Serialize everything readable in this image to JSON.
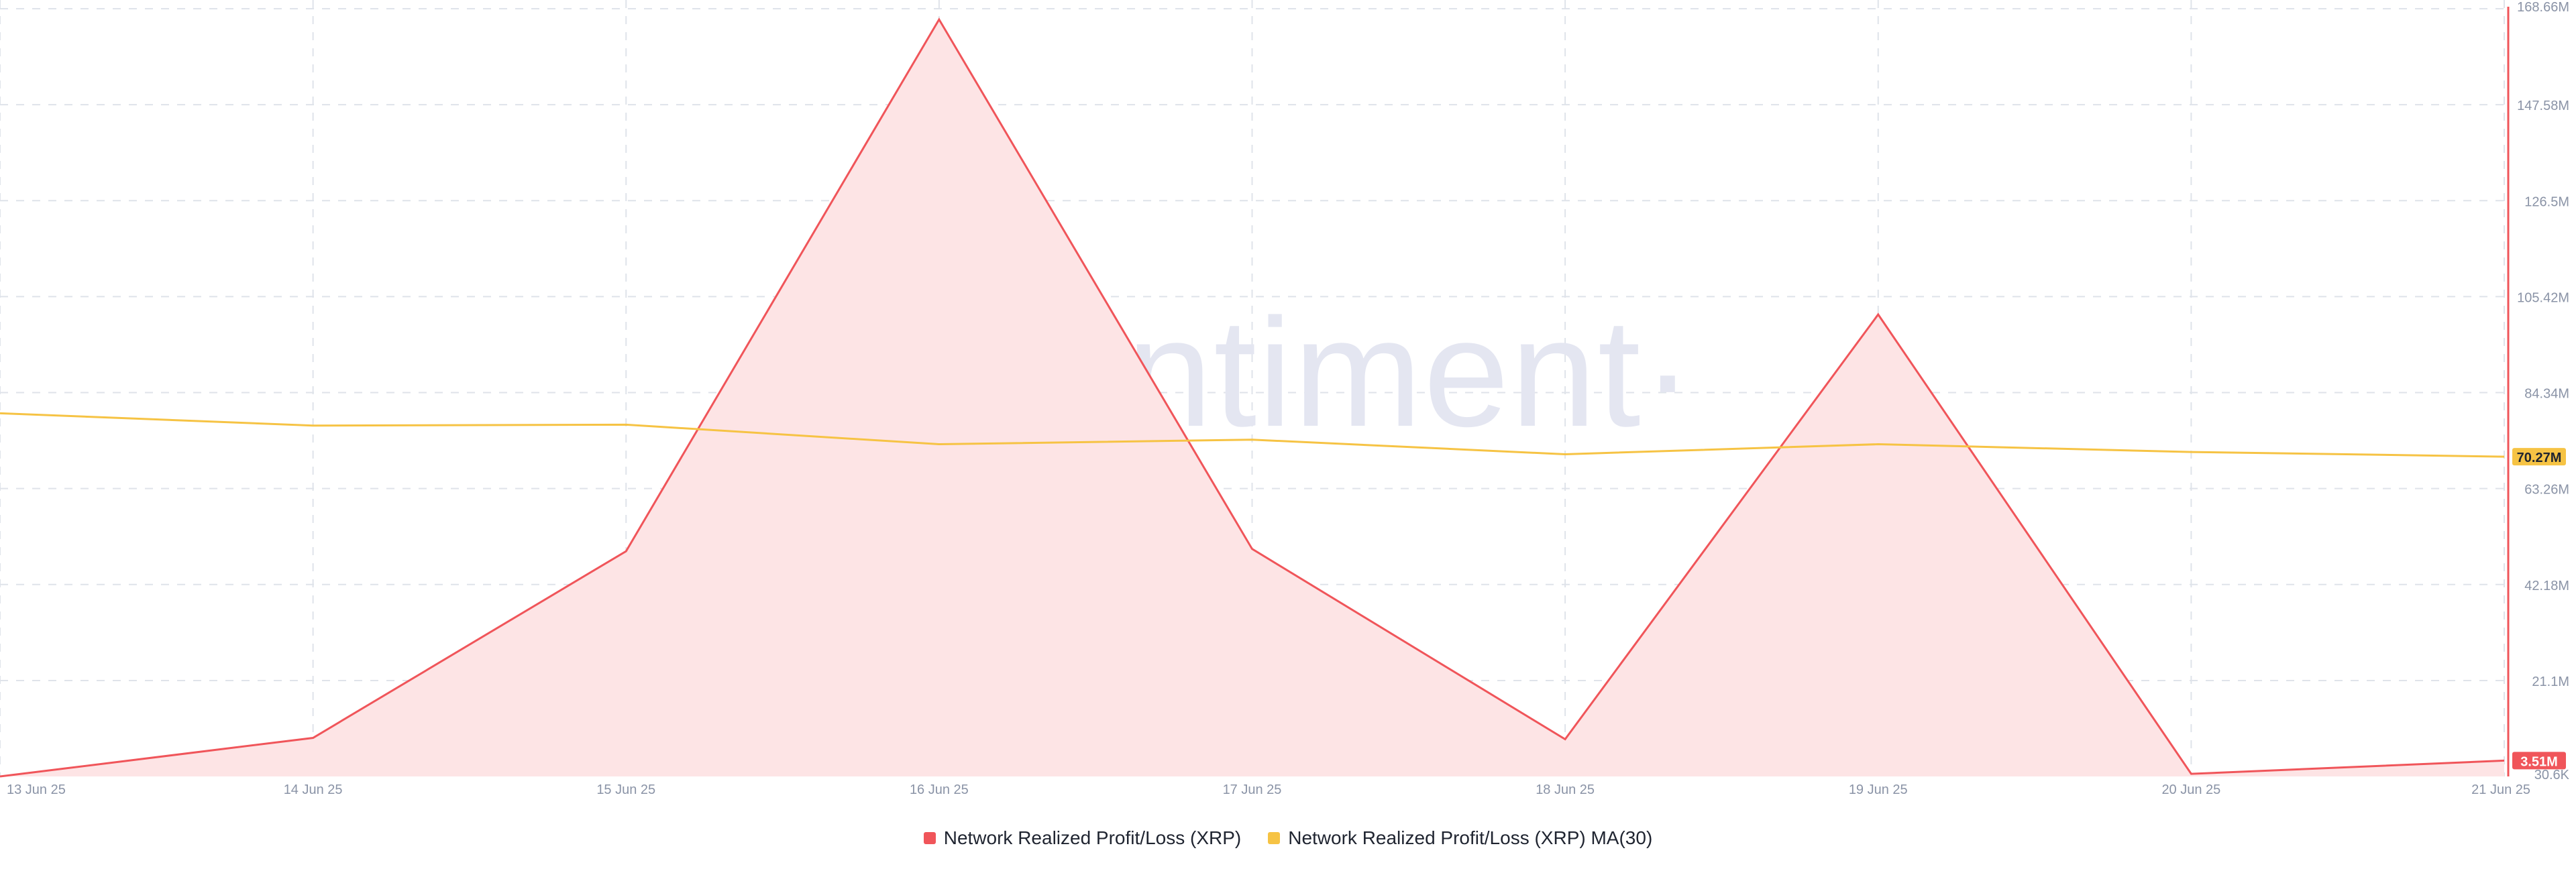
{
  "watermark": "·santiment·",
  "legend": {
    "series_1": {
      "label": "Network Realized Profit/Loss (XRP)",
      "color": "#f0555a"
    },
    "series_2": {
      "label": "Network Realized Profit/Loss (XRP) MA(30)",
      "color": "#f6c344"
    }
  },
  "colors": {
    "grid": "#dfe3ea",
    "tick_text": "#8a93a6",
    "pl_line": "#f0555a",
    "pl_fill": "#fde4e5",
    "ma_line": "#f6c344",
    "axis_line": "#f0555a",
    "watermark": "#e4e6f1"
  },
  "chart_data": {
    "type": "area",
    "title": "",
    "xlabel": "",
    "ylabel": "",
    "categories": [
      "13 Jun 25",
      "14 Jun 25",
      "15 Jun 25",
      "16 Jun 25",
      "17 Jun 25",
      "18 Jun 25",
      "19 Jun 25",
      "20 Jun 25",
      "21 Jun 25"
    ],
    "x_tick_labels": [
      "13 Jun 25",
      "14 Jun 25",
      "15 Jun 25",
      "16 Jun 25",
      "17 Jun 25",
      "18 Jun 25",
      "19 Jun 25",
      "20 Jun 25",
      "21 Jun 25"
    ],
    "y_tick_labels": [
      "168.66M",
      "147.58M",
      "126.5M",
      "105.42M",
      "84.34M",
      "63.26M",
      "42.18M",
      "21.1M",
      "30.6K"
    ],
    "y_ticks": [
      168660000,
      147580000,
      126500000,
      105420000,
      84340000,
      63260000,
      42180000,
      21100000,
      30600
    ],
    "ylim": [
      30600,
      168660000
    ],
    "grid": true,
    "legend_position": "bottom-center",
    "series": [
      {
        "name": "Network Realized Profit/Loss (XRP)",
        "type": "area",
        "color": "#f0555a",
        "values": [
          30600,
          8500000,
          49500000,
          166300000,
          50000000,
          8200000,
          101500000,
          600000,
          3510000
        ],
        "last_value_label": "3.51M"
      },
      {
        "name": "Network Realized Profit/Loss (XRP) MA(30)",
        "type": "line",
        "color": "#f6c344",
        "values": [
          79800000,
          77100000,
          77300000,
          73000000,
          74000000,
          70800000,
          73000000,
          71300000,
          70270000
        ],
        "last_value_label": "70.27M"
      }
    ]
  }
}
